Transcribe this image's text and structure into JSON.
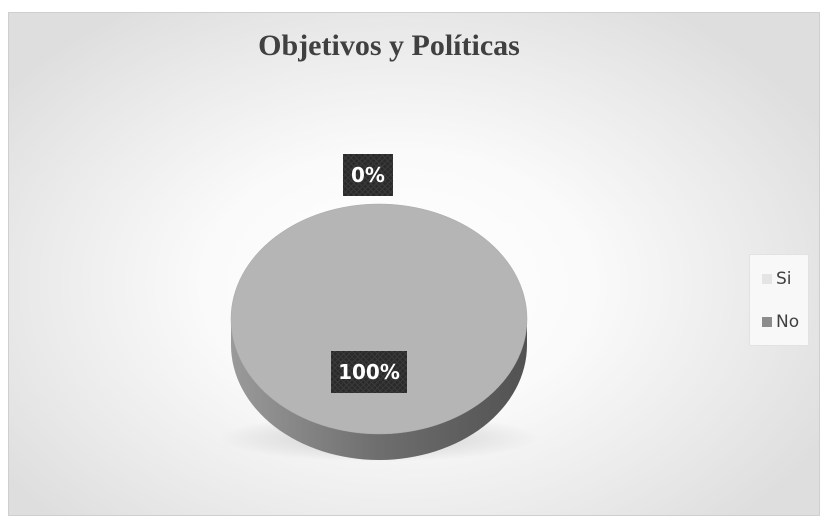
{
  "chart_data": {
    "type": "pie",
    "title": "Objetivos y Políticas",
    "categories": [
      "Si",
      "No"
    ],
    "values": [
      0,
      100
    ],
    "data_labels": [
      "0%",
      "100%"
    ],
    "colors": [
      "#eeeeee",
      "#b5b5b5"
    ],
    "legend_placement": "right",
    "style": "3d"
  }
}
